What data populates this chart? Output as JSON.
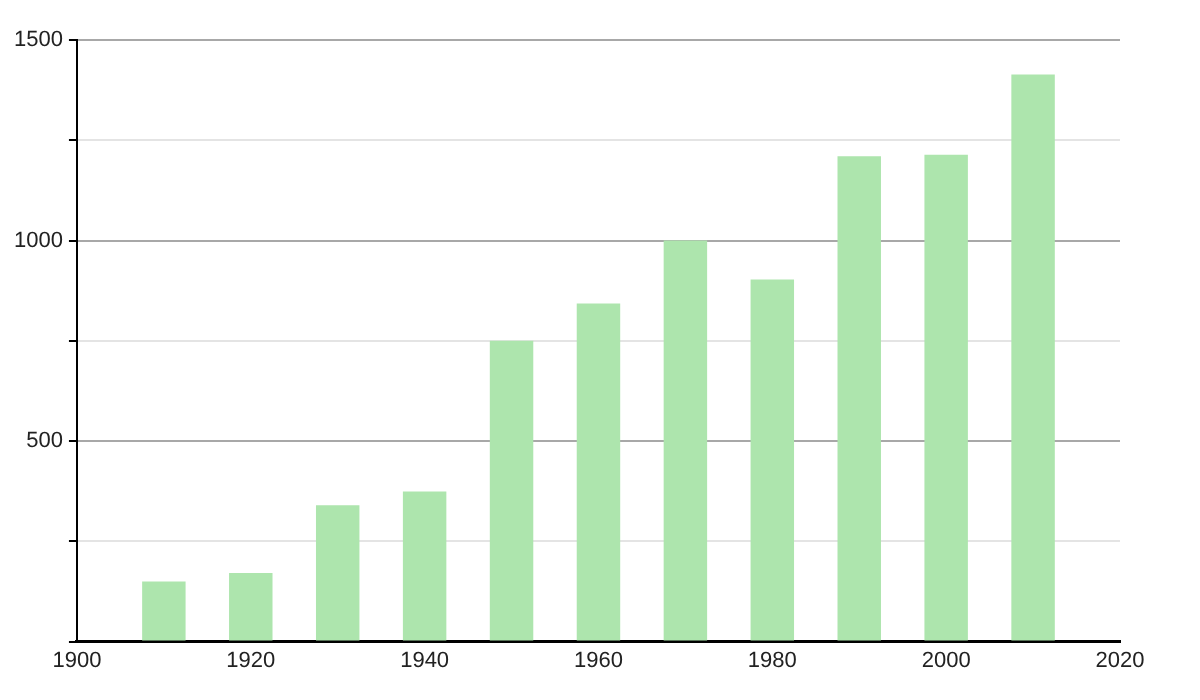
{
  "chart_data": {
    "type": "bar",
    "x": [
      1910,
      1920,
      1930,
      1940,
      1950,
      1960,
      1970,
      1980,
      1990,
      2000,
      2010
    ],
    "values": [
      150,
      171,
      340,
      374,
      750,
      843,
      1000,
      903,
      1210,
      1214,
      1414
    ],
    "color": "#ade5ad",
    "xlim": [
      1900,
      2020
    ],
    "xticks": [
      1900,
      1920,
      1940,
      1960,
      1980,
      2000,
      2020
    ],
    "ylim": [
      0,
      1500
    ],
    "yticks": [
      {
        "value": 0,
        "label": null
      },
      {
        "value": 250,
        "label": null
      },
      500,
      {
        "value": 750,
        "label": null
      },
      1000,
      {
        "value": 1250,
        "label": null
      },
      1500
    ],
    "grid": "y"
  }
}
